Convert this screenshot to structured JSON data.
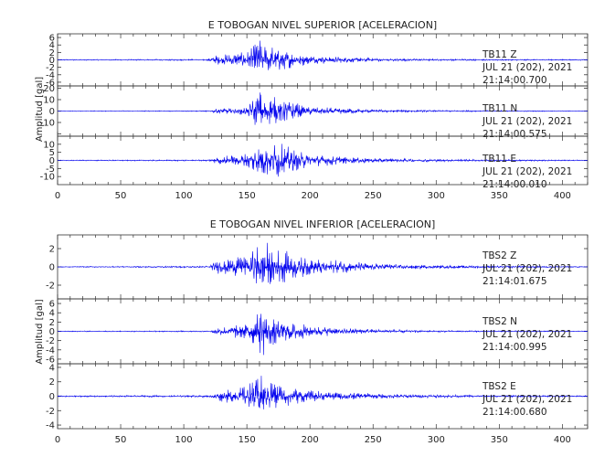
{
  "chart_data": [
    {
      "type": "line",
      "title": "E TOBOGAN NIVEL SUPERIOR [ACELERACION]",
      "ylabel": "Amplitud [gal]",
      "xlim": [
        0,
        420
      ],
      "xticks": [
        "0",
        "50",
        "100",
        "150",
        "200",
        "250",
        "300",
        "350",
        "400"
      ],
      "line_color": "#0000ee",
      "panels": [
        {
          "component": "Z",
          "info": [
            "TB11    Z",
            "JUL 21 (202), 2021",
            "21:14:00.700"
          ],
          "ylim": [
            -7,
            7
          ],
          "yticks": [
            -6,
            -4,
            -2,
            0,
            2,
            4,
            6
          ],
          "ytick_labels": [
            "-6",
            "-4",
            "-2",
            "0",
            "2",
            "4",
            "6"
          ],
          "envelope": [
            [
              0,
              0.15
            ],
            [
              118,
              0.2
            ],
            [
              125,
              1.3
            ],
            [
              140,
              1.8
            ],
            [
              152,
              2.5
            ],
            [
              160,
              6
            ],
            [
              163,
              5
            ],
            [
              175,
              3.2
            ],
            [
              200,
              1.2
            ],
            [
              250,
              0.5
            ],
            [
              300,
              0.25
            ],
            [
              420,
              0.15
            ]
          ]
        },
        {
          "component": "N",
          "info": [
            "TB11    N",
            "JUL 21 (202), 2021",
            "21:14:00.575"
          ],
          "ylim": [
            -22,
            22
          ],
          "yticks": [
            -20,
            -10,
            0,
            10,
            20
          ],
          "ytick_labels": [
            "",
            "-10",
            "0",
            "10",
            "20"
          ],
          "envelope": [
            [
              0,
              0.3
            ],
            [
              120,
              0.5
            ],
            [
              125,
              2
            ],
            [
              150,
              4
            ],
            [
              160,
              19
            ],
            [
              165,
              14
            ],
            [
              180,
              11
            ],
            [
              200,
              4
            ],
            [
              250,
              1.5
            ],
            [
              300,
              0.8
            ],
            [
              420,
              0.3
            ]
          ]
        },
        {
          "component": "E",
          "info": [
            "TB11    E",
            "JUL 21 (202), 2021",
            "21:14:00.010"
          ],
          "ylim": [
            -15,
            15
          ],
          "yticks": [
            -10,
            -5,
            0,
            5,
            10
          ],
          "ytick_labels": [
            "-10",
            "-5",
            "0",
            "5",
            "10"
          ],
          "envelope": [
            [
              0,
              0.3
            ],
            [
              120,
              0.5
            ],
            [
              125,
              2
            ],
            [
              150,
              5
            ],
            [
              160,
              10
            ],
            [
              175,
              12
            ],
            [
              185,
              8
            ],
            [
              200,
              4
            ],
            [
              250,
              1.5
            ],
            [
              300,
              0.8
            ],
            [
              420,
              0.3
            ]
          ]
        }
      ]
    },
    {
      "type": "line",
      "title": "E TOBOGAN NIVEL INFERIOR [ACELERACION]",
      "ylabel": "Amplitud [gal]",
      "xlim": [
        0,
        420
      ],
      "xticks": [
        "0",
        "50",
        "100",
        "150",
        "200",
        "250",
        "300",
        "350",
        "400"
      ],
      "line_color": "#0000ee",
      "panels": [
        {
          "component": "Z",
          "info": [
            "TBS2    Z",
            "JUL 21 (202), 2021",
            "21:14:01.675"
          ],
          "ylim": [
            -3.5,
            3.5
          ],
          "yticks": [
            -2,
            0,
            2
          ],
          "ytick_labels": [
            "-2",
            "0",
            "2"
          ],
          "envelope": [
            [
              0,
              0.05
            ],
            [
              120,
              0.1
            ],
            [
              125,
              0.7
            ],
            [
              150,
              1.3
            ],
            [
              160,
              2.8
            ],
            [
              163,
              3
            ],
            [
              175,
              2
            ],
            [
              200,
              1
            ],
            [
              250,
              0.4
            ],
            [
              300,
              0.2
            ],
            [
              420,
              0.05
            ]
          ]
        },
        {
          "component": "N",
          "info": [
            "TBS2    N",
            "JUL 21 (202), 2021",
            "21:14:00.995"
          ],
          "ylim": [
            -7,
            7
          ],
          "yticks": [
            -6,
            -4,
            -2,
            0,
            2,
            4,
            6
          ],
          "ytick_labels": [
            "-6",
            "-4",
            "-2",
            "0",
            "2",
            "4",
            "6"
          ],
          "envelope": [
            [
              0,
              0.1
            ],
            [
              120,
              0.15
            ],
            [
              125,
              0.8
            ],
            [
              150,
              2
            ],
            [
              158,
              4
            ],
            [
              162,
              5.8
            ],
            [
              170,
              3.5
            ],
            [
              200,
              1.2
            ],
            [
              250,
              0.5
            ],
            [
              300,
              0.2
            ],
            [
              420,
              0.1
            ]
          ]
        },
        {
          "component": "E",
          "info": [
            "TBS2    E",
            "JUL 21 (202), 2021",
            "21:14:00.680"
          ],
          "ylim": [
            -4.5,
            4.5
          ],
          "yticks": [
            -4,
            -2,
            0,
            2,
            4
          ],
          "ytick_labels": [
            "-4",
            "-2",
            "0",
            "2",
            "4"
          ],
          "envelope": [
            [
              0,
              0.1
            ],
            [
              120,
              0.15
            ],
            [
              125,
              0.6
            ],
            [
              150,
              1.5
            ],
            [
              160,
              3.8
            ],
            [
              165,
              2.8
            ],
            [
              180,
              1.5
            ],
            [
              200,
              0.8
            ],
            [
              250,
              0.4
            ],
            [
              300,
              0.2
            ],
            [
              420,
              0.1
            ]
          ]
        }
      ]
    }
  ]
}
